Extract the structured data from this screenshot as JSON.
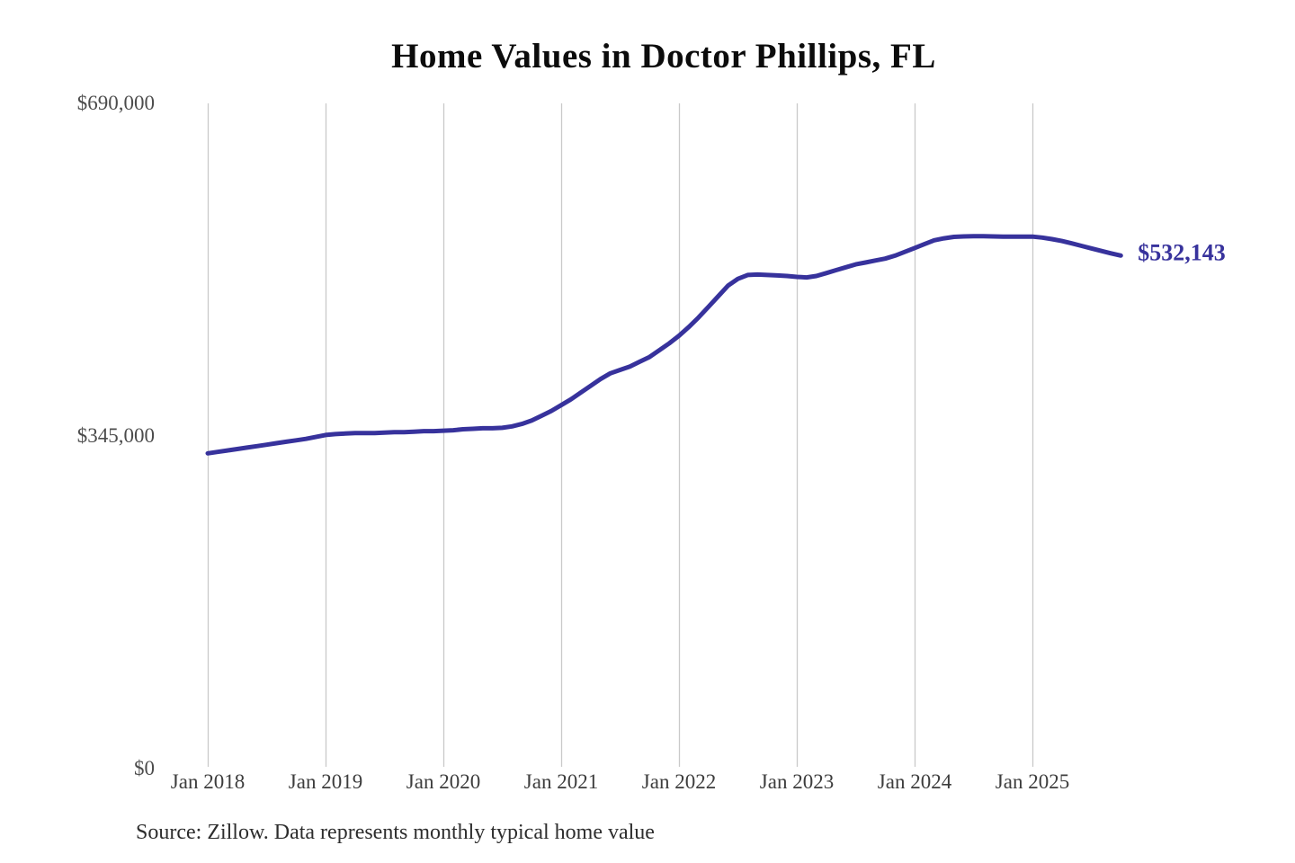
{
  "title": "Home Values in Doctor Phillips, FL",
  "source_note": "Source: Zillow. Data represents monthly typical home value",
  "colors": {
    "line": "#37329c",
    "end_label_text": "#37329c",
    "gridline": "#c9c9c9",
    "y_tick_text": "#4c4c4c",
    "x_tick_text": "#3d3d3d",
    "title_text": "#0c0c0c",
    "source_text": "#2d2d2d",
    "background": "#ffffff"
  },
  "y_axis": {
    "ticks": [
      {
        "label": "$0",
        "value": 0
      },
      {
        "label": "$345,000",
        "value": 345000
      },
      {
        "label": "$690,000",
        "value": 690000
      }
    ],
    "min": 0,
    "max": 690000
  },
  "x_axis": {
    "ticks": [
      "Jan 2018",
      "Jan 2019",
      "Jan 2020",
      "Jan 2021",
      "Jan 2022",
      "Jan 2023",
      "Jan 2024",
      "Jan 2025"
    ]
  },
  "chart_data": {
    "type": "line",
    "title": "Home Values in Doctor Phillips, FL",
    "series_name": "Monthly typical home value",
    "xlabel": "",
    "ylabel": "",
    "ylim": [
      0,
      690000
    ],
    "grid": "vertical-only",
    "legend": "none",
    "last_value_label": "$532,143",
    "last_value": 532143,
    "x": [
      "2018-01",
      "2018-02",
      "2018-03",
      "2018-04",
      "2018-05",
      "2018-06",
      "2018-07",
      "2018-08",
      "2018-09",
      "2018-10",
      "2018-11",
      "2018-12",
      "2019-01",
      "2019-02",
      "2019-03",
      "2019-04",
      "2019-05",
      "2019-06",
      "2019-07",
      "2019-08",
      "2019-09",
      "2019-10",
      "2019-11",
      "2019-12",
      "2020-01",
      "2020-02",
      "2020-03",
      "2020-04",
      "2020-05",
      "2020-06",
      "2020-07",
      "2020-08",
      "2020-09",
      "2020-10",
      "2020-11",
      "2020-12",
      "2021-01",
      "2021-02",
      "2021-03",
      "2021-04",
      "2021-05",
      "2021-06",
      "2021-07",
      "2021-08",
      "2021-09",
      "2021-10",
      "2021-11",
      "2021-12",
      "2022-01",
      "2022-02",
      "2022-03",
      "2022-04",
      "2022-05",
      "2022-06",
      "2022-07",
      "2022-08",
      "2022-09",
      "2022-10",
      "2022-11",
      "2022-12",
      "2023-01",
      "2023-02",
      "2023-03",
      "2023-04",
      "2023-05",
      "2023-06",
      "2023-07",
      "2023-08",
      "2023-09",
      "2023-10",
      "2023-11",
      "2023-12",
      "2024-01",
      "2024-02",
      "2024-03",
      "2024-04",
      "2024-05",
      "2024-06",
      "2024-07",
      "2024-08",
      "2024-09",
      "2024-10",
      "2024-11",
      "2024-12",
      "2025-01",
      "2025-02",
      "2025-03",
      "2025-04",
      "2025-05",
      "2025-06",
      "2025-07",
      "2025-08",
      "2025-09",
      "2025-10"
    ],
    "values": [
      327000,
      328500,
      330000,
      331500,
      333000,
      334500,
      336000,
      337500,
      339000,
      340500,
      342000,
      344000,
      346000,
      347000,
      347500,
      348000,
      348000,
      348000,
      348500,
      349000,
      349000,
      349500,
      350000,
      350000,
      350500,
      351000,
      352000,
      352500,
      353000,
      353000,
      353500,
      355000,
      357500,
      361000,
      366000,
      371000,
      377000,
      383000,
      390000,
      397000,
      404000,
      410000,
      413500,
      417000,
      422000,
      427000,
      434000,
      441000,
      449000,
      458000,
      468000,
      479000,
      490000,
      501000,
      508000,
      512000,
      512500,
      512000,
      511500,
      511000,
      510000,
      509500,
      511000,
      514000,
      517000,
      520000,
      523000,
      525000,
      527000,
      529000,
      532000,
      536000,
      540000,
      544000,
      548000,
      550000,
      551500,
      552000,
      552200,
      552200,
      552000,
      551800,
      551800,
      551800,
      551800,
      550800,
      549200,
      547200,
      544800,
      542200,
      539600,
      537000,
      534500,
      532143
    ]
  }
}
